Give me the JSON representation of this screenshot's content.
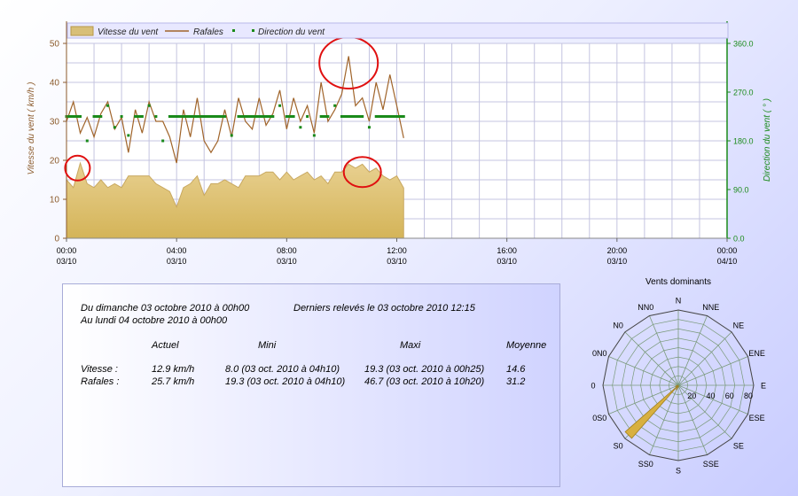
{
  "chart_data": [
    {
      "type": "line",
      "xlabel": "",
      "ylabel": "Vitesse du vent ( km/h )",
      "y2label": "Direction du vent ( ° )",
      "xlim": [
        "03/10 00:00",
        "04/10 00:00"
      ],
      "ylim": [
        0,
        50
      ],
      "y2lim": [
        0,
        360
      ],
      "y_ticks": [
        "0",
        "10",
        "20",
        "30",
        "40",
        "50"
      ],
      "y2_ticks": [
        "0.0",
        "90.0",
        "180.0",
        "270.0",
        "360.0"
      ],
      "x_ticks": [
        {
          "time": "00:00",
          "date": "03/10"
        },
        {
          "time": "04:00",
          "date": "03/10"
        },
        {
          "time": "08:00",
          "date": "03/10"
        },
        {
          "time": "12:00",
          "date": "03/10"
        },
        {
          "time": "16:00",
          "date": "03/10"
        },
        {
          "time": "20:00",
          "date": "03/10"
        },
        {
          "time": "00:00",
          "date": "04/10"
        }
      ],
      "grid": true,
      "legend_position": "top",
      "legend": [
        "Vitesse du vent",
        "Rafales",
        "Direction du vent"
      ],
      "x_hours": [
        0,
        0.25,
        0.5,
        0.75,
        1,
        1.25,
        1.5,
        1.75,
        2,
        2.25,
        2.5,
        2.75,
        3,
        3.25,
        3.5,
        3.75,
        4,
        4.25,
        4.5,
        4.75,
        5,
        5.25,
        5.5,
        5.75,
        6,
        6.25,
        6.5,
        6.75,
        7,
        7.25,
        7.5,
        7.75,
        8,
        8.25,
        8.5,
        8.75,
        9,
        9.25,
        9.5,
        9.75,
        10,
        10.25,
        10.5,
        10.75,
        11,
        11.25,
        11.5,
        11.75,
        12,
        12.25
      ],
      "series": [
        {
          "name": "Vitesse du vent",
          "kind": "area",
          "color": "#d8bf78",
          "values": [
            15,
            13,
            19.3,
            14,
            13,
            15,
            13,
            14,
            13,
            16,
            16,
            16,
            16,
            14,
            13,
            12,
            8,
            13,
            14,
            16,
            11,
            14,
            14,
            15,
            14,
            13,
            16,
            16,
            16,
            17,
            17,
            15,
            17,
            15,
            16,
            17,
            15,
            16,
            14,
            17,
            17,
            19,
            18,
            19,
            17,
            18,
            16,
            15,
            16,
            12.9
          ]
        },
        {
          "name": "Rafales",
          "kind": "line",
          "color": "#a0642a",
          "values": [
            30,
            35,
            27,
            31,
            26,
            32,
            35,
            28,
            31,
            22,
            33,
            27,
            35,
            30,
            30,
            26,
            19.3,
            33,
            26,
            36,
            25,
            22,
            25,
            33,
            26,
            36,
            30,
            28,
            36,
            29,
            32,
            38,
            28,
            36,
            30,
            34,
            27,
            40,
            30,
            33,
            37,
            46.7,
            34,
            36,
            30,
            40,
            33,
            42,
            34,
            25.7
          ]
        },
        {
          "name": "Direction du vent",
          "kind": "dots",
          "color": "#1a8a1a",
          "values": [
            225,
            225,
            225,
            180,
            225,
            225,
            245,
            205,
            225,
            190,
            225,
            225,
            245,
            225,
            180,
            225,
            225,
            225,
            225,
            225,
            225,
            225,
            225,
            225,
            190,
            225,
            225,
            225,
            225,
            225,
            225,
            245,
            225,
            225,
            205,
            225,
            190,
            225,
            225,
            245,
            225,
            225,
            225,
            225,
            205,
            225,
            225,
            225,
            225,
            225
          ]
        }
      ]
    },
    {
      "type": "polar",
      "title": "Vents dominants",
      "directions": [
        "N",
        "NNE",
        "NE",
        "ENE",
        "E",
        "ESE",
        "SE",
        "SSE",
        "S",
        "SS0",
        "S0",
        "0S0",
        "0",
        "0N0",
        "N0",
        "NN0"
      ],
      "r_ticks": [
        "20",
        "40",
        "60",
        "80"
      ],
      "rmax": 80,
      "values": [
        0,
        0,
        0,
        0,
        0,
        0,
        0,
        0,
        2,
        5,
        75,
        3,
        0,
        0,
        0,
        0
      ],
      "color": "#d8b040"
    }
  ],
  "colors": {
    "annotation": "#e01010",
    "axis_left": "#8b5a2b",
    "axis_right": "#1a8a1a"
  },
  "annotations": [
    {
      "hour": 0.4,
      "value": 18,
      "rx": 14,
      "ry": 14
    },
    {
      "hour": 10.75,
      "value": 17,
      "rx": 21,
      "ry": 17
    },
    {
      "hour": 10.25,
      "value": 45,
      "rx": 33,
      "ry": 29
    }
  ],
  "stats": {
    "period_from": "Du dimanche 03 octobre 2010 à 00h00",
    "period_to": "Au lundi 04 octobre 2010 à 00h00",
    "last_reading": "Derniers relevés le 03 octobre 2010 12:15",
    "headers": {
      "actuel": "Actuel",
      "mini": "Mini",
      "maxi": "Maxi",
      "moyenne": "Moyenne"
    },
    "rows": [
      {
        "label": "Vitesse :",
        "actuel": "12.9 km/h",
        "mini": "8.0 (03 oct. 2010 à 04h10)",
        "maxi": "19.3 (03 oct. 2010 à 00h25)",
        "moyenne": "14.6"
      },
      {
        "label": "Rafales :",
        "actuel": "25.7 km/h",
        "mini": "19.3 (03 oct. 2010 à 04h10)",
        "maxi": "46.7 (03 oct. 2010 à 10h20)",
        "moyenne": "31.2"
      }
    ]
  }
}
